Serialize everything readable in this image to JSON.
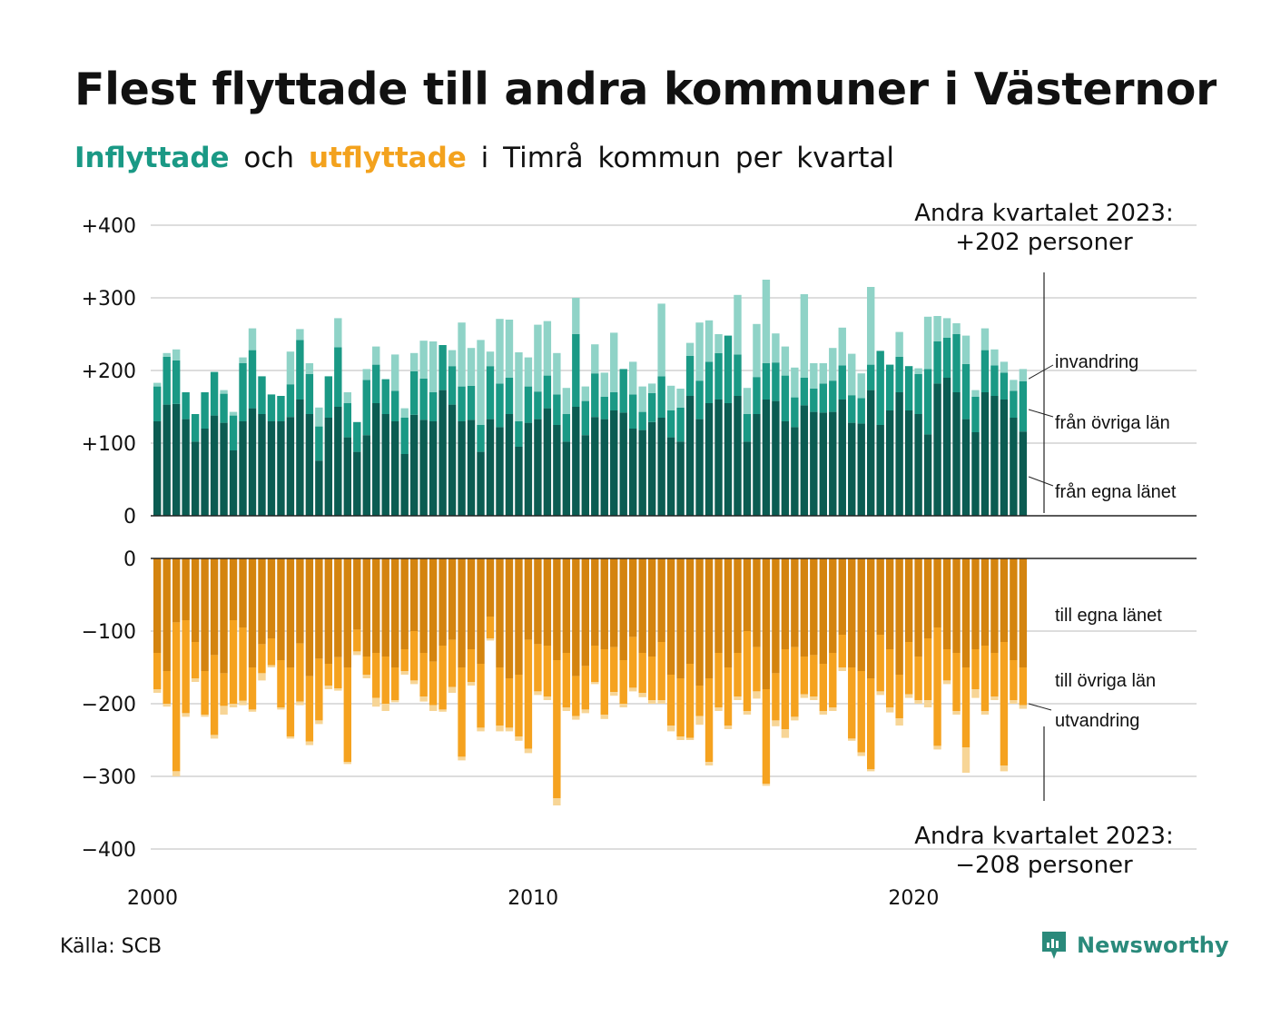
{
  "title": "Flest flyttade till andra kommuner i Västernorrland",
  "subtitle": {
    "in_word": "Inflyttade",
    "and_word": "och",
    "out_word": "utflyttade",
    "rest": "i Timrå kommun per kvartal"
  },
  "source": "Källa: SCB",
  "logo_text": "Newsworthy",
  "annotation_top": {
    "line1": "Andra kvartalet 2023:",
    "line2": "+202 personer"
  },
  "annotation_bottom": {
    "line1": "Andra kvartalet 2023:",
    "line2": "−208 personer"
  },
  "colors": {
    "in_dark": "#0b5c52",
    "in_mid": "#1a9985",
    "in_light": "#8fd3c7",
    "out_dark": "#d4840f",
    "out_mid": "#f5a21f",
    "out_light": "#f7d596",
    "grid": "#dddddd"
  },
  "chart_data": [
    {
      "type": "bar",
      "stacked": true,
      "title": "Inflyttade",
      "yticks": [
        "+400",
        "+300",
        "+200",
        "+100",
        "0"
      ],
      "ylim": [
        0,
        400
      ],
      "x_ticks": [
        "2000",
        "2010",
        "2020"
      ],
      "segment_labels": [
        "invandring",
        "från övriga län",
        "från egna länet"
      ],
      "series": [
        {
          "name": "från egna länet",
          "values": [
            130,
            153,
            154,
            133,
            102,
            120,
            138,
            128,
            90,
            130,
            148,
            140,
            130,
            130,
            136,
            160,
            140,
            76,
            135,
            150,
            108,
            88,
            111,
            155,
            140,
            130,
            85,
            139,
            132,
            130,
            173,
            153,
            130,
            132,
            88,
            133,
            122,
            140,
            95,
            128,
            133,
            148,
            125,
            102,
            150,
            111,
            136,
            133,
            145,
            142,
            120,
            118,
            129,
            135,
            108,
            102,
            165,
            133,
            155,
            160,
            155,
            165,
            102,
            140,
            160,
            158,
            130,
            122,
            152,
            143,
            142,
            143,
            160,
            128,
            127,
            173,
            125,
            145,
            170,
            145,
            140,
            112,
            182,
            190,
            170,
            133,
            115,
            170,
            165,
            160,
            135,
            116
          ]
        },
        {
          "name": "från övriga län",
          "values": [
            48,
            66,
            60,
            37,
            38,
            50,
            60,
            40,
            48,
            80,
            80,
            52,
            37,
            35,
            45,
            82,
            55,
            47,
            57,
            82,
            47,
            41,
            76,
            53,
            48,
            42,
            50,
            60,
            57,
            40,
            62,
            53,
            48,
            47,
            37,
            73,
            60,
            50,
            35,
            50,
            38,
            45,
            42,
            38,
            100,
            47,
            60,
            31,
            25,
            60,
            47,
            25,
            40,
            57,
            37,
            47,
            55,
            53,
            57,
            64,
            93,
            57,
            38,
            51,
            50,
            53,
            63,
            41,
            38,
            32,
            40,
            43,
            47,
            38,
            35,
            35,
            102,
            63,
            49,
            61,
            55,
            90,
            58,
            55,
            80,
            76,
            49,
            58,
            42,
            37,
            37,
            69
          ]
        },
        {
          "name": "invandring",
          "values": [
            5,
            5,
            15,
            0,
            0,
            0,
            0,
            5,
            5,
            8,
            30,
            0,
            0,
            0,
            45,
            15,
            15,
            26,
            0,
            40,
            15,
            0,
            15,
            25,
            0,
            50,
            13,
            25,
            52,
            70,
            0,
            22,
            88,
            52,
            117,
            20,
            89,
            80,
            95,
            40,
            92,
            75,
            57,
            36,
            50,
            20,
            40,
            33,
            82,
            0,
            45,
            35,
            13,
            100,
            34,
            26,
            18,
            80,
            57,
            26,
            0,
            82,
            36,
            73,
            115,
            40,
            40,
            41,
            115,
            35,
            28,
            45,
            52,
            57,
            34,
            107,
            0,
            0,
            34,
            0,
            8,
            72,
            35,
            27,
            15,
            39,
            9,
            30,
            22,
            15,
            15,
            17
          ]
        }
      ]
    },
    {
      "type": "bar",
      "stacked": true,
      "title": "Utflyttade",
      "yticks": [
        "0",
        "−100",
        "−200",
        "−300",
        "−400"
      ],
      "ylim": [
        -400,
        0
      ],
      "x_ticks": [
        "2000",
        "2010",
        "2020"
      ],
      "segment_labels": [
        "till egna länet",
        "till övriga län",
        "utvandring"
      ],
      "series": [
        {
          "name": "till egna länet",
          "values": [
            -130,
            -155,
            -88,
            -85,
            -115,
            -155,
            -133,
            -158,
            -85,
            -95,
            -150,
            -118,
            -110,
            -140,
            -150,
            -117,
            -162,
            -138,
            -145,
            -136,
            -150,
            -98,
            -135,
            -130,
            -135,
            -150,
            -125,
            -100,
            -130,
            -142,
            -120,
            -112,
            -150,
            -125,
            -145,
            -80,
            -150,
            -165,
            -160,
            -112,
            -118,
            -120,
            -140,
            -130,
            -162,
            -148,
            -120,
            -125,
            -122,
            -140,
            -108,
            -130,
            -135,
            -115,
            -160,
            -165,
            -145,
            -175,
            -165,
            -130,
            -150,
            -130,
            -100,
            -122,
            -180,
            -158,
            -125,
            -122,
            -135,
            -133,
            -145,
            -130,
            -105,
            -150,
            -155,
            -165,
            -105,
            -125,
            -160,
            -115,
            -135,
            -110,
            -95,
            -125,
            -130,
            -150,
            -125,
            -120,
            -130,
            -115,
            -140,
            -150
          ]
        },
        {
          "name": "till övriga län",
          "values": [
            -50,
            -45,
            -205,
            -128,
            -50,
            -60,
            -110,
            -45,
            -115,
            -101,
            -58,
            -40,
            -37,
            -65,
            -95,
            -80,
            -90,
            -85,
            -30,
            -43,
            -130,
            -30,
            -25,
            -62,
            -65,
            -45,
            -30,
            -68,
            -60,
            -60,
            -88,
            -65,
            -123,
            -45,
            -88,
            -30,
            -80,
            -68,
            -85,
            -150,
            -65,
            -70,
            -190,
            -75,
            -55,
            -60,
            -50,
            -90,
            -62,
            -60,
            -70,
            -55,
            -60,
            -80,
            -70,
            -80,
            -102,
            -42,
            -115,
            -75,
            -80,
            -60,
            -110,
            -61,
            -130,
            -65,
            -110,
            -96,
            -52,
            -57,
            -65,
            -75,
            -45,
            -98,
            -112,
            -125,
            -78,
            -80,
            -60,
            -72,
            -60,
            -85,
            -163,
            -43,
            -80,
            -110,
            -55,
            -90,
            -60,
            -170,
            -55,
            -52
          ]
        },
        {
          "name": "utvandring",
          "values": [
            -5,
            -4,
            -7,
            -5,
            -5,
            -3,
            -5,
            -12,
            -5,
            -6,
            -3,
            -10,
            -3,
            -3,
            -3,
            -5,
            -5,
            -5,
            -5,
            -3,
            -3,
            -5,
            -5,
            -12,
            -10,
            -3,
            -5,
            -5,
            -7,
            -8,
            -3,
            -8,
            -5,
            -5,
            -5,
            -3,
            -8,
            -5,
            -6,
            -6,
            -5,
            -5,
            -10,
            -5,
            -5,
            -5,
            -3,
            -6,
            -5,
            -5,
            -5,
            -6,
            -5,
            -5,
            -8,
            -5,
            -3,
            -12,
            -5,
            -5,
            -5,
            -5,
            -5,
            -10,
            -3,
            -8,
            -12,
            -5,
            -5,
            -5,
            -5,
            -5,
            -5,
            -3,
            -5,
            -3,
            -5,
            -7,
            -10,
            -5,
            -5,
            -10,
            -5,
            -5,
            -5,
            -35,
            -12,
            -5,
            -5,
            -8,
            -5,
            -5
          ]
        }
      ]
    }
  ]
}
